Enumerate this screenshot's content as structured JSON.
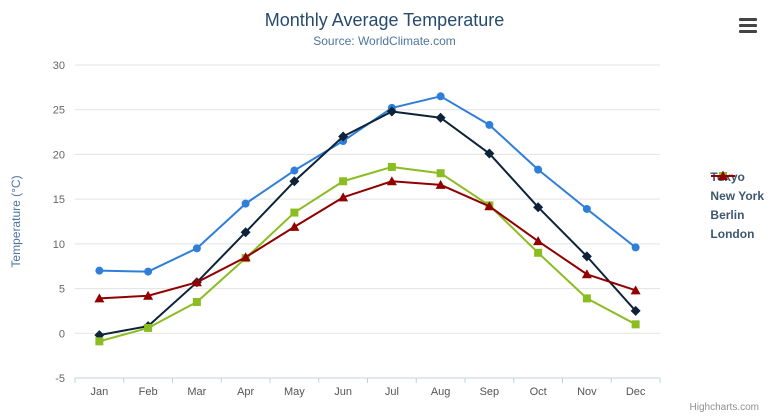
{
  "chart_data": {
    "type": "line",
    "title": "Monthly Average Temperature",
    "subtitle": "Source: WorldClimate.com",
    "categories": [
      "Jan",
      "Feb",
      "Mar",
      "Apr",
      "May",
      "Jun",
      "Jul",
      "Aug",
      "Sep",
      "Oct",
      "Nov",
      "Dec"
    ],
    "xlabel": "",
    "ylabel": "Temperature (°C)",
    "ylim": [
      -5,
      30
    ],
    "ytick_step": 5,
    "grid": true,
    "legend_position": "right",
    "series": [
      {
        "name": "Tokyo",
        "color": "#2f7ed8",
        "marker": "circle",
        "values": [
          7.0,
          6.9,
          9.5,
          14.5,
          18.2,
          21.5,
          25.2,
          26.5,
          23.3,
          18.3,
          13.9,
          9.6
        ]
      },
      {
        "name": "New York",
        "color": "#0d233a",
        "marker": "diamond",
        "values": [
          -0.2,
          0.8,
          5.7,
          11.3,
          17.0,
          22.0,
          24.8,
          24.1,
          20.1,
          14.1,
          8.6,
          2.5
        ]
      },
      {
        "name": "Berlin",
        "color": "#8bbc21",
        "marker": "square",
        "values": [
          -0.9,
          0.6,
          3.5,
          8.4,
          13.5,
          17.0,
          18.6,
          17.9,
          14.3,
          9.0,
          3.9,
          1.0
        ]
      },
      {
        "name": "London",
        "color": "#910000",
        "marker": "triangle",
        "values": [
          3.9,
          4.2,
          5.7,
          8.5,
          11.9,
          15.2,
          17.0,
          16.6,
          14.2,
          10.3,
          6.6,
          4.8
        ]
      }
    ],
    "credits": "Highcharts.com"
  },
  "icons": {
    "export_menu": "hamburger-menu-icon"
  },
  "style": {
    "title_color": "#274b6d",
    "subtitle_color": "#4d759e",
    "yaxis_title_color": "#4d759e",
    "axis_label_color": "#666666",
    "xaxis_label_color": "#555555",
    "grid_color": "#e3e3e3",
    "axis_line_color": "#c0d0e0",
    "legend_text_color": "#3e576f",
    "credits_color": "#909090",
    "burger_color": "#444444"
  }
}
